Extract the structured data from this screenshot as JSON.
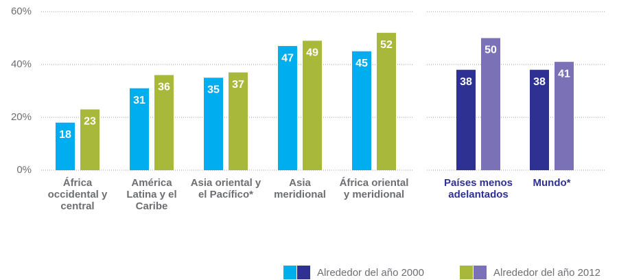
{
  "chart_data": [
    {
      "type": "bar",
      "categories": [
        "África occidental y central",
        "América Latina y el Caribe",
        "Asia oriental y el Pacífico*",
        "Asia meridional",
        "África oriental y meridional"
      ],
      "series": [
        {
          "name": "Alrededor del año 2000",
          "color": "#00aeef",
          "values": [
            18,
            31,
            35,
            47,
            45
          ]
        },
        {
          "name": "Alrededor del año 2012",
          "color": "#a8b83a",
          "values": [
            23,
            36,
            37,
            49,
            52
          ]
        }
      ],
      "label_color": "#6d6e71",
      "ylim": [
        0,
        60
      ],
      "yticks": [
        {
          "value": 0,
          "label": "0%"
        },
        {
          "value": 20,
          "label": "20%"
        },
        {
          "value": 40,
          "label": "40%"
        },
        {
          "value": 60,
          "label": "60%"
        }
      ],
      "grid": true
    },
    {
      "type": "bar",
      "categories": [
        "Países menos adelantados",
        "Mundo*"
      ],
      "series": [
        {
          "color": "#2e3192",
          "values": [
            38,
            38
          ]
        },
        {
          "color": "#7b71b7",
          "values": [
            50,
            41
          ]
        }
      ],
      "label_color": "#2e3192"
    }
  ]
}
